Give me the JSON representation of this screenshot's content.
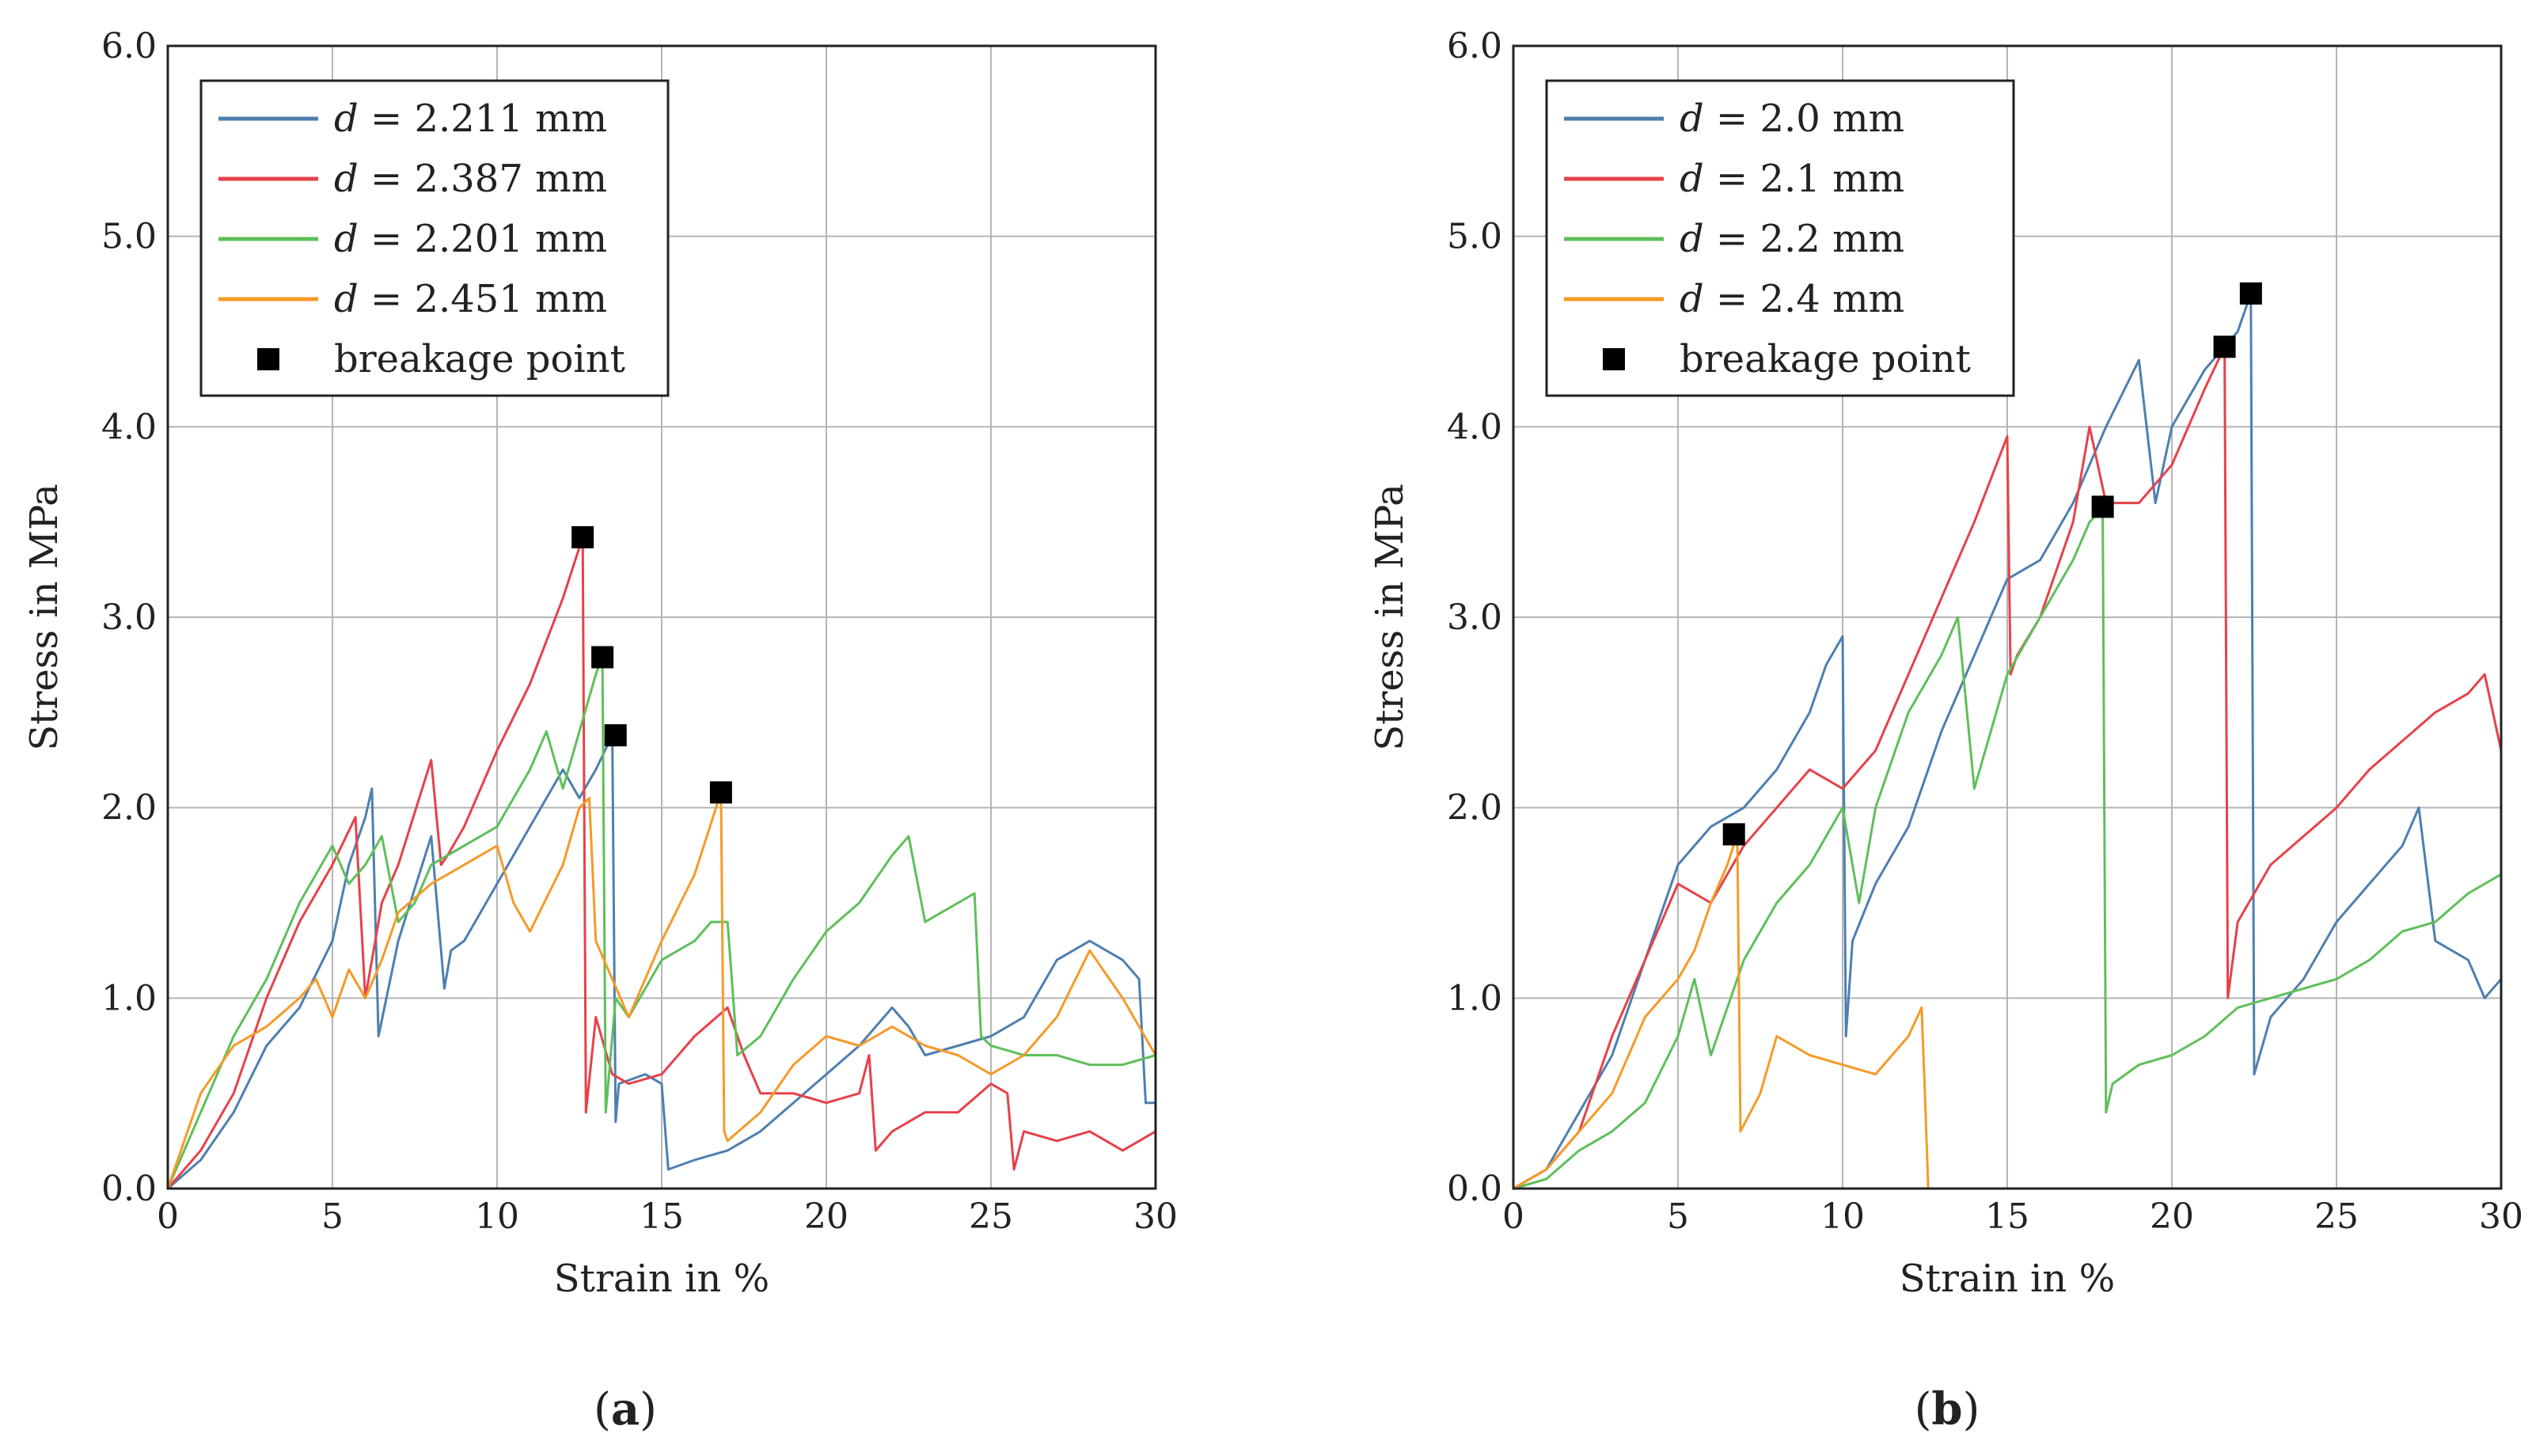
{
  "chart_data": [
    {
      "type": "line",
      "panel": "a",
      "caption": "(a)",
      "xlabel": "Strain in %",
      "ylabel": "Stress in MPa",
      "xlim": [
        0,
        30
      ],
      "ylim": [
        0,
        6
      ],
      "xticks": [
        0,
        5,
        10,
        15,
        20,
        25,
        30
      ],
      "yticks": [
        0.0,
        1.0,
        2.0,
        3.0,
        4.0,
        5.0,
        6.0
      ],
      "xtick_labels": [
        "0",
        "5",
        "10",
        "15",
        "20",
        "25",
        "30"
      ],
      "ytick_labels": [
        "0.0",
        "1.0",
        "2.0",
        "3.0",
        "4.0",
        "5.0",
        "6.0"
      ],
      "grid": true,
      "legend_position": "top-left",
      "series": [
        {
          "name": "d = 2.211 mm",
          "label_var": "d",
          "label_rest": " = 2.211 mm",
          "color": "#4e7fb0",
          "x": [
            0,
            1,
            2,
            3,
            4,
            5,
            5.5,
            6,
            6.2,
            6.4,
            7,
            8,
            8.4,
            8.6,
            9,
            10,
            11,
            12,
            12.5,
            13,
            13.5,
            13.6,
            13.7,
            14.5,
            15,
            15.2,
            16,
            17,
            18,
            19,
            20,
            21,
            22,
            22.5,
            23,
            24,
            25,
            26,
            27,
            28,
            29,
            29.5,
            29.7,
            30
          ],
          "y": [
            0,
            0.15,
            0.4,
            0.75,
            0.95,
            1.3,
            1.7,
            1.95,
            2.1,
            0.8,
            1.3,
            1.85,
            1.05,
            1.25,
            1.3,
            1.6,
            1.9,
            2.2,
            2.05,
            2.2,
            2.38,
            0.35,
            0.55,
            0.6,
            0.55,
            0.1,
            0.15,
            0.2,
            0.3,
            0.45,
            0.6,
            0.75,
            0.95,
            0.85,
            0.7,
            0.75,
            0.8,
            0.9,
            1.2,
            1.3,
            1.2,
            1.1,
            0.45,
            0.45
          ]
        },
        {
          "name": "d = 2.387 mm",
          "label_var": "d",
          "label_rest": " = 2.387 mm",
          "color": "#e5424a",
          "x": [
            0,
            1,
            2,
            3,
            4,
            5,
            5.7,
            6,
            6.5,
            7,
            8,
            8.3,
            8.5,
            9,
            10,
            11,
            12,
            12.6,
            12.7,
            13,
            13.5,
            14,
            15,
            16,
            17,
            17.5,
            18,
            19,
            20,
            21,
            21.3,
            21.5,
            22,
            23,
            24,
            25,
            25.5,
            25.7,
            26,
            27,
            28,
            29,
            30
          ],
          "y": [
            0,
            0.2,
            0.5,
            1.0,
            1.4,
            1.7,
            1.95,
            1.0,
            1.5,
            1.7,
            2.25,
            1.7,
            1.75,
            1.9,
            2.3,
            2.65,
            3.1,
            3.42,
            0.4,
            0.9,
            0.6,
            0.55,
            0.6,
            0.8,
            0.95,
            0.7,
            0.5,
            0.5,
            0.45,
            0.5,
            0.7,
            0.2,
            0.3,
            0.4,
            0.4,
            0.55,
            0.5,
            0.1,
            0.3,
            0.25,
            0.3,
            0.2,
            0.3
          ]
        },
        {
          "name": "d = 2.201 mm",
          "label_var": "d",
          "label_rest": " = 2.201 mm",
          "color": "#5fbf5a",
          "x": [
            0,
            1,
            2,
            3,
            4,
            5,
            5.5,
            6,
            6.5,
            7,
            7.5,
            8,
            9,
            10,
            11,
            11.5,
            12,
            12.5,
            13,
            13.2,
            13.3,
            13.6,
            14,
            15,
            16,
            16.5,
            17,
            17.3,
            18,
            19,
            20,
            21,
            22,
            22.5,
            23,
            24,
            24.5,
            24.7,
            25,
            26,
            27,
            28,
            29,
            30
          ],
          "y": [
            0,
            0.4,
            0.8,
            1.1,
            1.5,
            1.8,
            1.6,
            1.7,
            1.85,
            1.4,
            1.5,
            1.7,
            1.8,
            1.9,
            2.2,
            2.4,
            2.1,
            2.4,
            2.7,
            2.8,
            0.4,
            1.0,
            0.9,
            1.2,
            1.3,
            1.4,
            1.4,
            0.7,
            0.8,
            1.1,
            1.35,
            1.5,
            1.75,
            1.85,
            1.4,
            1.5,
            1.55,
            0.8,
            0.75,
            0.7,
            0.7,
            0.65,
            0.65,
            0.7
          ]
        },
        {
          "name": "d = 2.451 mm",
          "label_var": "d",
          "label_rest": " = 2.451 mm",
          "color": "#f59a28",
          "x": [
            0,
            1,
            2,
            3,
            4,
            4.5,
            5,
            5.5,
            6,
            6.5,
            7,
            8,
            9,
            10,
            10.5,
            11,
            12,
            12.5,
            12.8,
            13,
            14,
            15,
            16,
            16.8,
            16.9,
            17,
            18,
            19,
            20,
            21,
            22,
            23,
            24,
            25,
            26,
            27,
            28,
            29,
            30
          ],
          "y": [
            0,
            0.5,
            0.75,
            0.85,
            1.0,
            1.1,
            0.9,
            1.15,
            1.0,
            1.2,
            1.45,
            1.6,
            1.7,
            1.8,
            1.5,
            1.35,
            1.7,
            2.0,
            2.05,
            1.3,
            0.9,
            1.3,
            1.65,
            2.08,
            0.3,
            0.25,
            0.4,
            0.65,
            0.8,
            0.75,
            0.85,
            0.75,
            0.7,
            0.6,
            0.7,
            0.9,
            1.25,
            1.0,
            0.7
          ]
        }
      ],
      "breakage_points": {
        "label": "breakage point",
        "points": [
          [
            12.6,
            3.42
          ],
          [
            13.2,
            2.79
          ],
          [
            13.6,
            2.38
          ],
          [
            16.8,
            2.08
          ]
        ]
      }
    },
    {
      "type": "line",
      "panel": "b",
      "caption": "(b)",
      "xlabel": "Strain in %",
      "ylabel": "Stress in MPa",
      "xlim": [
        0,
        30
      ],
      "ylim": [
        0,
        6
      ],
      "xticks": [
        0,
        5,
        10,
        15,
        20,
        25,
        30
      ],
      "yticks": [
        0.0,
        1.0,
        2.0,
        3.0,
        4.0,
        5.0,
        6.0
      ],
      "xtick_labels": [
        "0",
        "5",
        "10",
        "15",
        "20",
        "25",
        "30"
      ],
      "ytick_labels": [
        "0.0",
        "1.0",
        "2.0",
        "3.0",
        "4.0",
        "5.0",
        "6.0"
      ],
      "grid": true,
      "legend_position": "top-left",
      "series": [
        {
          "name": "d = 2.0 mm",
          "label_var": "d",
          "label_rest": " = 2.0 mm",
          "color": "#4e7fb0",
          "x": [
            0,
            1,
            2,
            3,
            4,
            5,
            6,
            7,
            8,
            9,
            9.5,
            10,
            10.1,
            10.3,
            11,
            12,
            13,
            14,
            15,
            16,
            17,
            18,
            19,
            19.5,
            20,
            21,
            22,
            22.4,
            22.5,
            23,
            24,
            25,
            26,
            27,
            27.5,
            28,
            29,
            29.5,
            30
          ],
          "y": [
            0,
            0.1,
            0.4,
            0.7,
            1.2,
            1.7,
            1.9,
            2.0,
            2.2,
            2.5,
            2.75,
            2.9,
            0.8,
            1.3,
            1.6,
            1.9,
            2.4,
            2.8,
            3.2,
            3.3,
            3.6,
            4.0,
            4.35,
            3.6,
            4.0,
            4.3,
            4.5,
            4.7,
            0.6,
            0.9,
            1.1,
            1.4,
            1.6,
            1.8,
            2.0,
            1.3,
            1.2,
            1.0,
            1.1
          ]
        },
        {
          "name": "d = 2.1 mm",
          "label_var": "d",
          "label_rest": " = 2.1 mm",
          "color": "#e5424a",
          "x": [
            0,
            1,
            2,
            3,
            4,
            5,
            6,
            7,
            8,
            9,
            10,
            11,
            12,
            13,
            14,
            15,
            15.1,
            15.3,
            16,
            17,
            17.5,
            18,
            19,
            20,
            21,
            21.6,
            21.7,
            22,
            23,
            24,
            25,
            26,
            27,
            28,
            29,
            29.5,
            30
          ],
          "y": [
            0,
            0.1,
            0.3,
            0.8,
            1.2,
            1.6,
            1.5,
            1.8,
            2.0,
            2.2,
            2.1,
            2.3,
            2.7,
            3.1,
            3.5,
            3.95,
            2.7,
            2.8,
            3.0,
            3.5,
            4.0,
            3.6,
            3.6,
            3.8,
            4.2,
            4.42,
            1.0,
            1.4,
            1.7,
            1.85,
            2.0,
            2.2,
            2.35,
            2.5,
            2.6,
            2.7,
            2.3
          ]
        },
        {
          "name": "d = 2.2 mm",
          "label_var": "d",
          "label_rest": " = 2.2 mm",
          "color": "#5fbf5a",
          "x": [
            0,
            1,
            2,
            3,
            4,
            5,
            5.5,
            6,
            7,
            8,
            9,
            10,
            10.5,
            11,
            12,
            13,
            13.5,
            14,
            15,
            16,
            17,
            17.5,
            17.9,
            18,
            18.2,
            19,
            20,
            21,
            22,
            23,
            24,
            25,
            26,
            27,
            28,
            29,
            30
          ],
          "y": [
            0,
            0.05,
            0.2,
            0.3,
            0.45,
            0.8,
            1.1,
            0.7,
            1.2,
            1.5,
            1.7,
            2.0,
            1.5,
            2.0,
            2.5,
            2.8,
            3.0,
            2.1,
            2.7,
            3.0,
            3.3,
            3.5,
            3.57,
            0.4,
            0.55,
            0.65,
            0.7,
            0.8,
            0.95,
            1.0,
            1.05,
            1.1,
            1.2,
            1.35,
            1.4,
            1.55,
            1.65
          ]
        },
        {
          "name": "d = 2.4 mm",
          "label_var": "d",
          "label_rest": " = 2.4 mm",
          "color": "#f59a28",
          "x": [
            0,
            1,
            2,
            3,
            4,
            5,
            5.5,
            6,
            6.5,
            6.8,
            6.9,
            7.5,
            8,
            9,
            10,
            11,
            12,
            12.4,
            12.5,
            12.6,
            15
          ],
          "y": [
            0,
            0.1,
            0.3,
            0.5,
            0.9,
            1.1,
            1.25,
            1.5,
            1.7,
            1.86,
            0.3,
            0.5,
            0.8,
            0.7,
            0.65,
            0.6,
            0.8,
            0.95,
            0.5,
            0,
            0
          ]
        }
      ],
      "breakage_points": {
        "label": "breakage point",
        "points": [
          [
            6.7,
            1.86
          ],
          [
            17.9,
            3.58
          ],
          [
            21.6,
            4.42
          ],
          [
            22.4,
            4.7
          ]
        ]
      }
    }
  ]
}
